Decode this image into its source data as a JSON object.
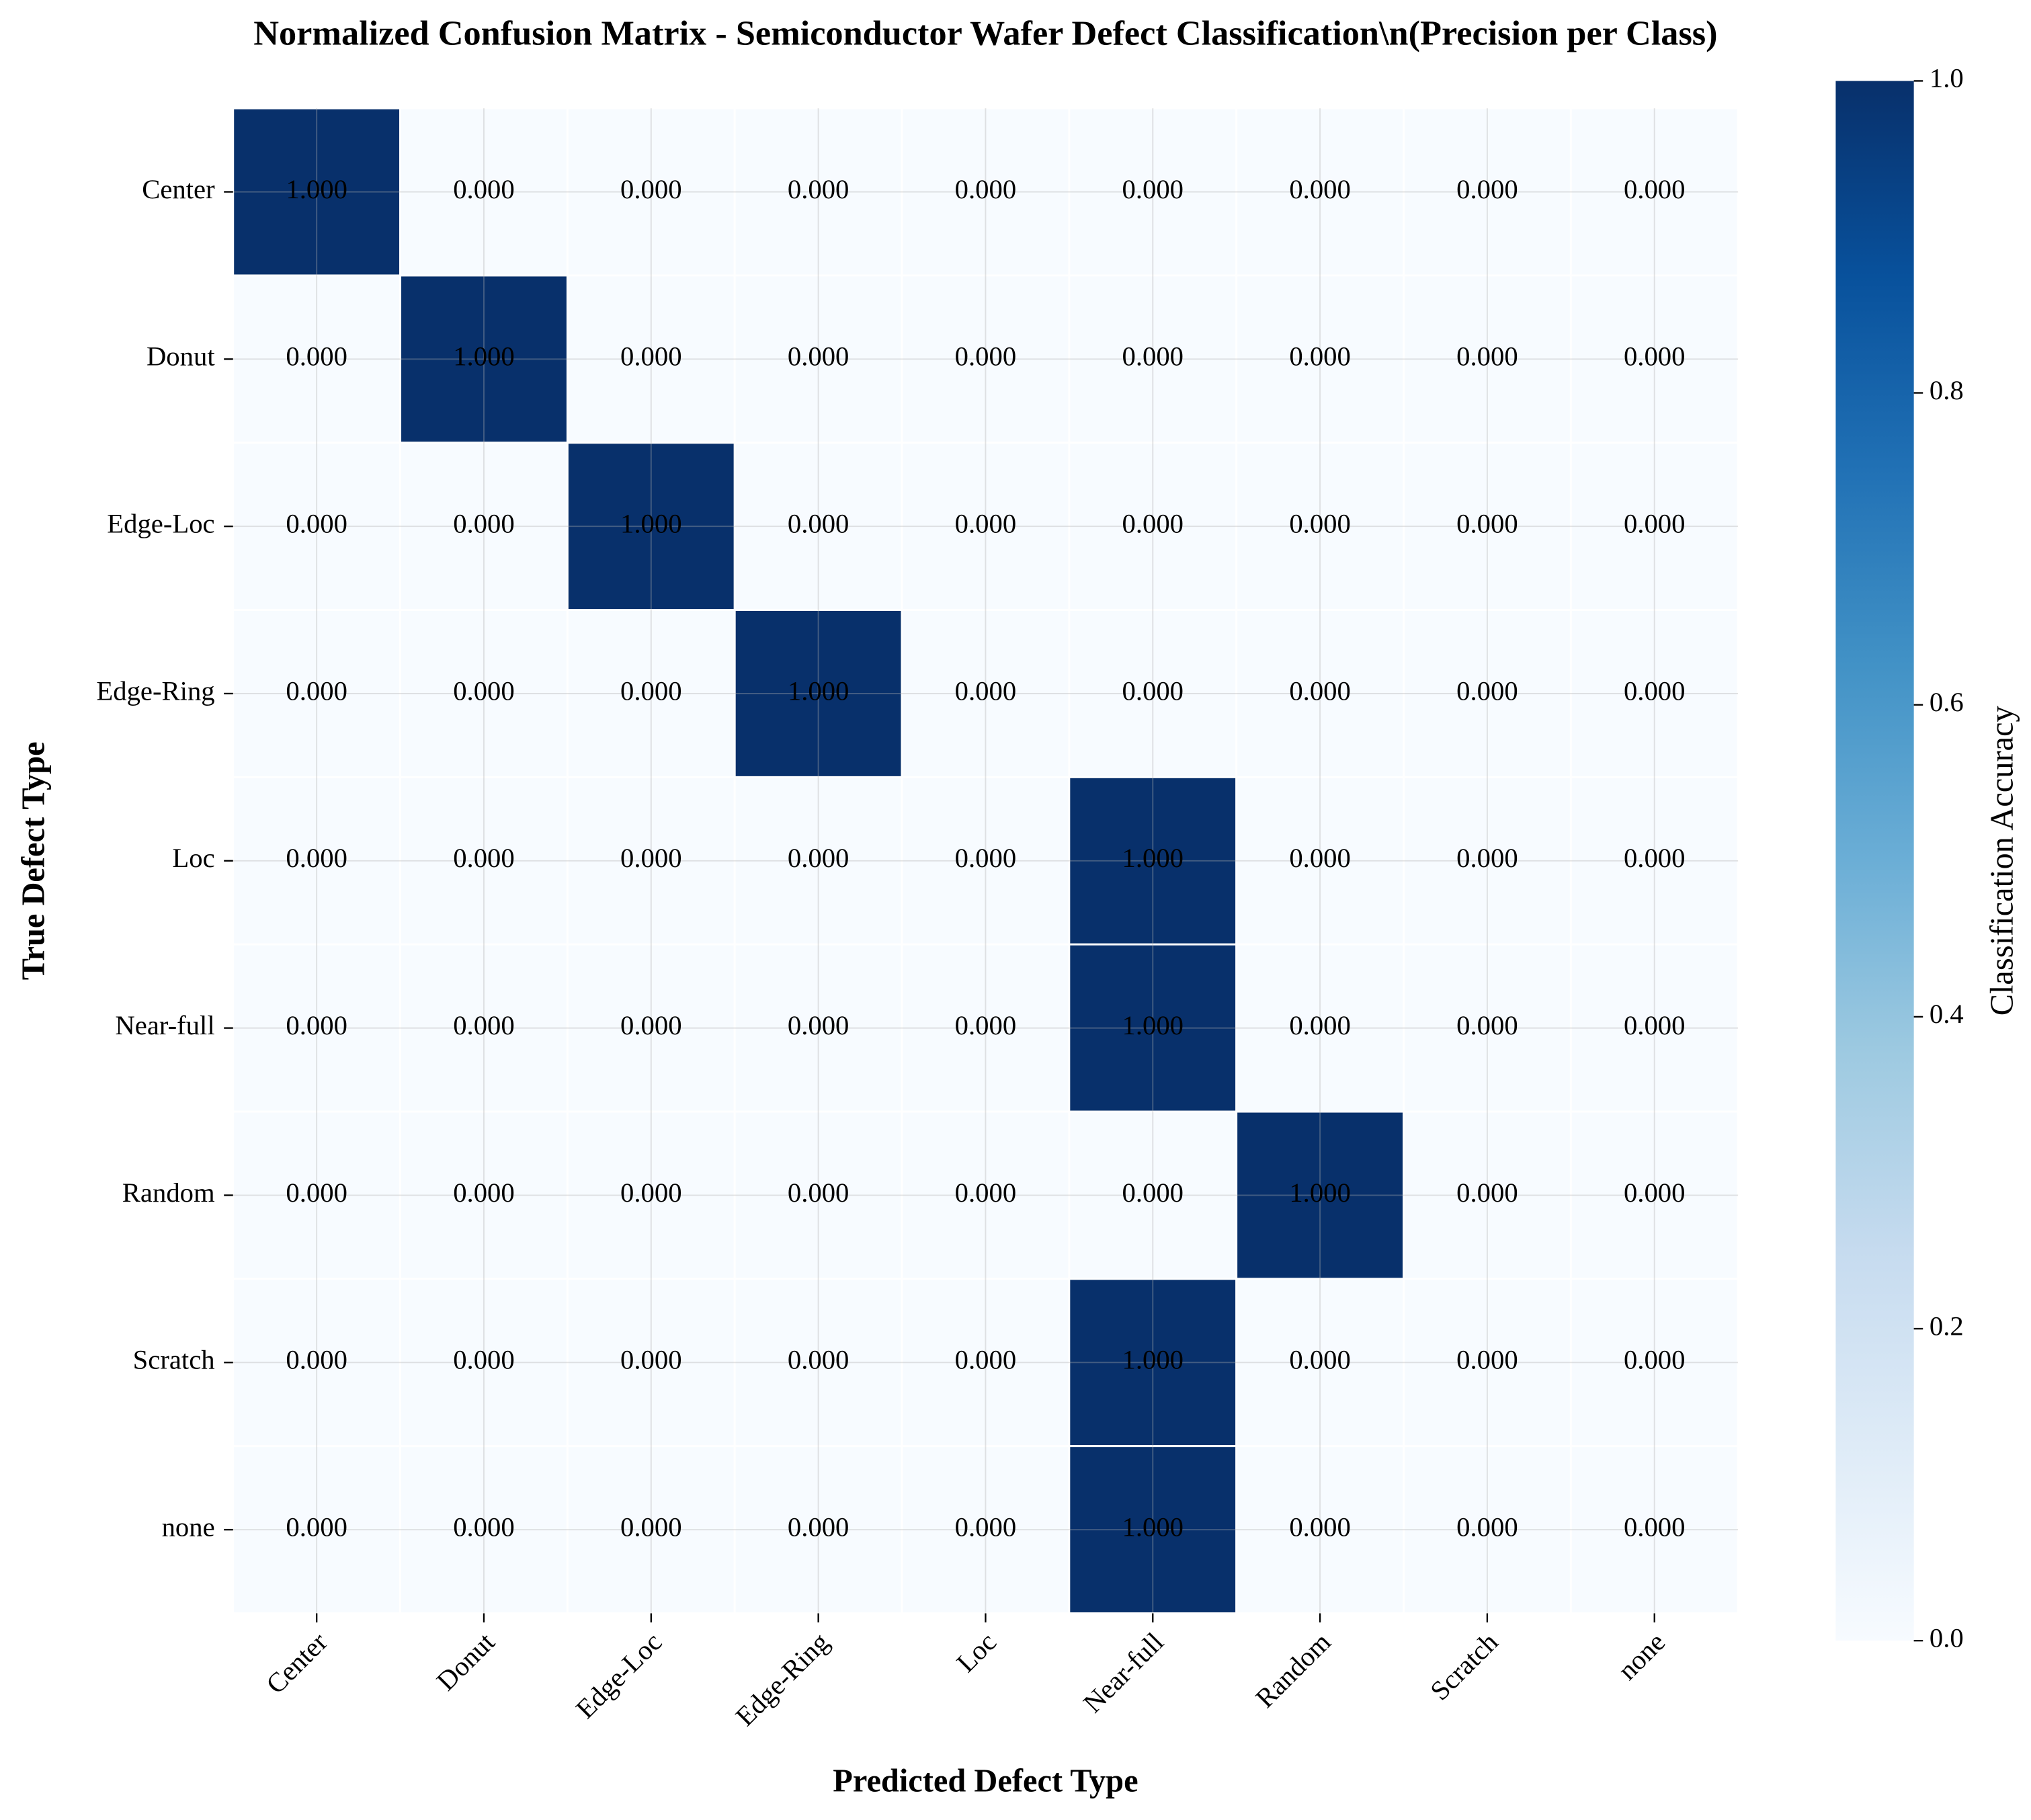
{
  "chart_data": {
    "type": "heatmap",
    "title": "Normalized Confusion Matrix - Semiconductor Wafer Defect Classification\\n(Precision per Class)",
    "xlabel": "Predicted Defect Type",
    "ylabel": "True Defect Type",
    "x_categories": [
      "Center",
      "Donut",
      "Edge-Loc",
      "Edge-Ring",
      "Loc",
      "Near-full",
      "Random",
      "Scratch",
      "none"
    ],
    "y_categories": [
      "Center",
      "Donut",
      "Edge-Loc",
      "Edge-Ring",
      "Loc",
      "Near-full",
      "Random",
      "Scratch",
      "none"
    ],
    "values": [
      [
        1,
        0,
        0,
        0,
        0,
        0,
        0,
        0,
        0
      ],
      [
        0,
        1,
        0,
        0,
        0,
        0,
        0,
        0,
        0
      ],
      [
        0,
        0,
        1,
        0,
        0,
        0,
        0,
        0,
        0
      ],
      [
        0,
        0,
        0,
        1,
        0,
        0,
        0,
        0,
        0
      ],
      [
        0,
        0,
        0,
        0,
        0,
        1,
        0,
        0,
        0
      ],
      [
        0,
        0,
        0,
        0,
        0,
        1,
        0,
        0,
        0
      ],
      [
        0,
        0,
        0,
        0,
        0,
        0,
        1,
        0,
        0
      ],
      [
        0,
        0,
        0,
        0,
        0,
        1,
        0,
        0,
        0
      ],
      [
        0,
        0,
        0,
        0,
        0,
        1,
        0,
        0,
        0
      ]
    ],
    "value_labels": [
      [
        "1.000",
        "0.000",
        "0.000",
        "0.000",
        "0.000",
        "0.000",
        "0.000",
        "0.000",
        "0.000"
      ],
      [
        "0.000",
        "1.000",
        "0.000",
        "0.000",
        "0.000",
        "0.000",
        "0.000",
        "0.000",
        "0.000"
      ],
      [
        "0.000",
        "0.000",
        "1.000",
        "0.000",
        "0.000",
        "0.000",
        "0.000",
        "0.000",
        "0.000"
      ],
      [
        "0.000",
        "0.000",
        "0.000",
        "1.000",
        "0.000",
        "0.000",
        "0.000",
        "0.000",
        "0.000"
      ],
      [
        "0.000",
        "0.000",
        "0.000",
        "0.000",
        "0.000",
        "1.000",
        "0.000",
        "0.000",
        "0.000"
      ],
      [
        "0.000",
        "0.000",
        "0.000",
        "0.000",
        "0.000",
        "1.000",
        "0.000",
        "0.000",
        "0.000"
      ],
      [
        "0.000",
        "0.000",
        "0.000",
        "0.000",
        "0.000",
        "0.000",
        "1.000",
        "0.000",
        "0.000"
      ],
      [
        "0.000",
        "0.000",
        "0.000",
        "0.000",
        "0.000",
        "1.000",
        "0.000",
        "0.000",
        "0.000"
      ],
      [
        "0.000",
        "0.000",
        "0.000",
        "0.000",
        "0.000",
        "1.000",
        "0.000",
        "0.000",
        "0.000"
      ]
    ],
    "colorbar_label": "Classification Accuracy",
    "zlim": [
      0,
      1
    ],
    "zticks": [
      {
        "value": 0,
        "label": "0.0"
      },
      {
        "value": 0.2,
        "label": "0.2"
      },
      {
        "value": 0.4,
        "label": "0.4"
      },
      {
        "value": 0.6,
        "label": "0.6"
      },
      {
        "value": 0.8,
        "label": "0.8"
      },
      {
        "value": 1,
        "label": "1.0"
      }
    ],
    "colormap": [
      "#f7fbff",
      "#deebf7",
      "#c6dbef",
      "#9ecae1",
      "#6baed6",
      "#4292c6",
      "#2171b5",
      "#08519c",
      "#08306b"
    ],
    "grid": true
  }
}
